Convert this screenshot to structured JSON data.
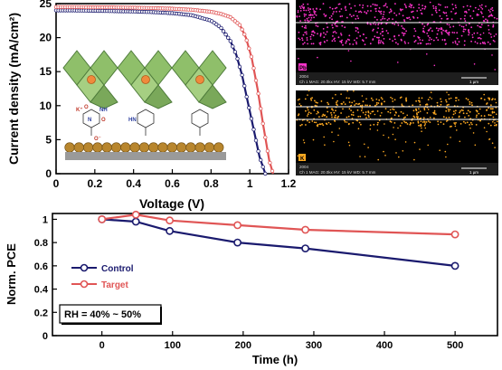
{
  "chart_data": [
    {
      "type": "line",
      "panel": "a",
      "xlabel": "Voltage (V)",
      "ylabel": "Current density (mA/cm²)",
      "xlim": [
        0,
        1.2
      ],
      "ylim": [
        0,
        25
      ],
      "xticks": [
        "0",
        "0.2",
        "0.4",
        "0.6",
        "0.8",
        "1",
        "1.2"
      ],
      "yticks": [
        "0",
        "5",
        "10",
        "15",
        "20",
        "25"
      ],
      "series": [
        {
          "name": "",
          "color": "#1a1a6e",
          "marker": "open-circle",
          "x": [
            0,
            0.1,
            0.2,
            0.3,
            0.4,
            0.5,
            0.6,
            0.7,
            0.8,
            0.85,
            0.9,
            0.93,
            0.96,
            0.99,
            1.02,
            1.05,
            1.08
          ],
          "y": [
            24.0,
            24.0,
            23.95,
            23.9,
            23.85,
            23.75,
            23.6,
            23.3,
            22.5,
            21.5,
            19.5,
            17.5,
            14.5,
            10.5,
            6.5,
            2.5,
            0
          ]
        },
        {
          "name": "",
          "color": "#e05555",
          "marker": "open-circle",
          "x": [
            0,
            0.1,
            0.2,
            0.3,
            0.4,
            0.5,
            0.6,
            0.7,
            0.8,
            0.85,
            0.9,
            0.95,
            0.98,
            1.01,
            1.04,
            1.07,
            1.1,
            1.12
          ],
          "y": [
            24.5,
            24.5,
            24.45,
            24.45,
            24.4,
            24.35,
            24.25,
            24.1,
            23.8,
            23.5,
            23.0,
            21.8,
            20.0,
            17.0,
            12.5,
            7.0,
            2.0,
            0
          ]
        }
      ],
      "inset_labels": [
        "K⁺",
        "O",
        "NH",
        "N",
        "O",
        "O⁻",
        "HN"
      ]
    },
    {
      "type": "image",
      "panel": "b",
      "element_label": "Pb",
      "info_line": "Ch 1    MAG: 20.0kx    HV: 15 kV    WD: 5.7 mm",
      "tag": "2004",
      "scalebar": "1 µm",
      "dot_color": "#ff33cc"
    },
    {
      "type": "image",
      "panel": "c",
      "element_label": "K",
      "info_line": "Ch 1    MAG: 20.0kx    HV: 15 kV    WD: 5.7 mm",
      "tag": "2004",
      "scalebar": "1 µm",
      "dot_color": "#ffaa22"
    },
    {
      "type": "line",
      "panel": "d",
      "xlabel": "Time (h)",
      "ylabel": "Norm. PCE",
      "xlim": [
        -70,
        560
      ],
      "ylim": [
        0,
        1.05
      ],
      "xticks": [
        "0",
        "100",
        "200",
        "300",
        "400",
        "500"
      ],
      "yticks": [
        "0",
        "0.2",
        "0.4",
        "0.6",
        "0.8",
        "1"
      ],
      "annotation": "RH = 40% ~ 50%",
      "legend_position": "middle-left",
      "series": [
        {
          "name": "Control",
          "color": "#1a1a6e",
          "x": [
            0,
            48,
            96,
            192,
            288,
            500
          ],
          "y": [
            1.0,
            0.98,
            0.9,
            0.8,
            0.75,
            0.6
          ]
        },
        {
          "name": "Target",
          "color": "#e05555",
          "x": [
            0,
            48,
            96,
            192,
            288,
            500
          ],
          "y": [
            1.0,
            1.04,
            0.99,
            0.95,
            0.91,
            0.87
          ]
        }
      ]
    }
  ]
}
